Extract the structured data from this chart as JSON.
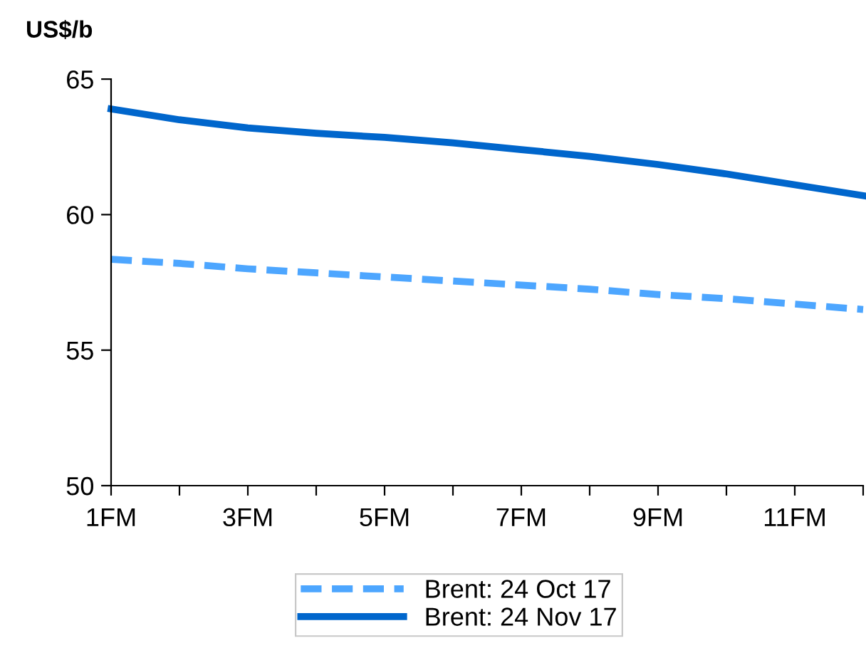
{
  "chart_data": {
    "type": "line",
    "ylabel": "US$/b",
    "categories": [
      "1FM",
      null,
      "3FM",
      null,
      "5FM",
      null,
      "7FM",
      null,
      "9FM",
      null,
      "11FM",
      null
    ],
    "series": [
      {
        "name": "Brent: 24 Oct 17",
        "color": "#4da6ff",
        "line_style": "dashed",
        "values": [
          58.35,
          58.2,
          58.0,
          57.85,
          57.7,
          57.55,
          57.4,
          57.25,
          57.05,
          56.9,
          56.7,
          56.5
        ]
      },
      {
        "name": "Brent: 24 Nov 17",
        "color": "#0066cc",
        "line_style": "solid",
        "values": [
          63.9,
          63.5,
          63.2,
          63.0,
          62.85,
          62.65,
          62.4,
          62.15,
          61.85,
          61.5,
          61.1,
          60.7
        ]
      }
    ],
    "ylim": [
      50,
      65
    ],
    "yticks": [
      50,
      55,
      60,
      65
    ],
    "grid": false,
    "legend": "bottom",
    "marker": "none"
  }
}
